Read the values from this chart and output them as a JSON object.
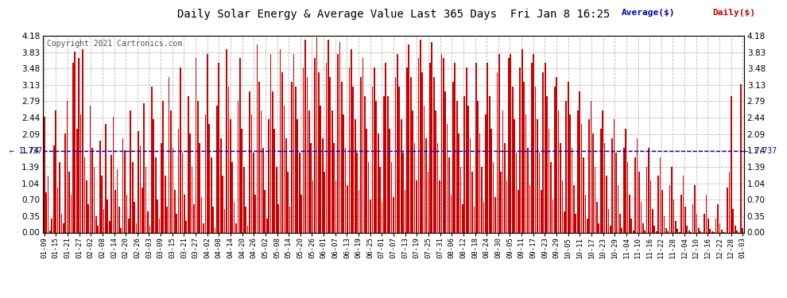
{
  "title": "Daily Solar Energy & Average Value Last 365 Days  Fri Jan 8 16:25",
  "copyright": "Copyright 2021 Cartronics.com",
  "average_label": "Average($)",
  "daily_label": "Daily($)",
  "average_value": 1.737,
  "ylim": [
    0.0,
    4.18
  ],
  "yticks": [
    0.0,
    0.35,
    0.7,
    1.04,
    1.39,
    1.74,
    2.09,
    2.44,
    2.79,
    3.13,
    3.48,
    3.83,
    4.18
  ],
  "bar_color": "#cc0000",
  "avg_line_color": "#0000cc",
  "background_color": "#ffffff",
  "grid_color": "#bbbbbb",
  "title_color": "#000000",
  "avg_text_color": "#0000cc",
  "daily_text_color": "#cc0000",
  "xtick_labels": [
    "01-09",
    "01-15",
    "01-21",
    "01-27",
    "02-02",
    "02-08",
    "02-14",
    "02-20",
    "02-26",
    "03-03",
    "03-09",
    "03-15",
    "03-21",
    "03-27",
    "04-02",
    "04-08",
    "04-14",
    "04-20",
    "04-26",
    "05-02",
    "05-08",
    "05-14",
    "05-20",
    "05-26",
    "06-01",
    "06-07",
    "06-13",
    "06-19",
    "06-25",
    "07-01",
    "07-07",
    "07-13",
    "07-19",
    "07-25",
    "07-31",
    "08-06",
    "08-12",
    "08-18",
    "08-24",
    "08-30",
    "09-05",
    "09-11",
    "09-17",
    "09-23",
    "09-29",
    "10-05",
    "10-11",
    "10-17",
    "10-23",
    "10-29",
    "11-04",
    "11-10",
    "11-16",
    "11-22",
    "11-28",
    "12-04",
    "12-10",
    "12-16",
    "12-22",
    "12-28",
    "01-03"
  ],
  "values": [
    2.45,
    0.85,
    1.2,
    0.05,
    0.3,
    1.85,
    2.6,
    0.95,
    1.5,
    0.4,
    0.2,
    2.1,
    2.8,
    1.3,
    0.8,
    3.6,
    3.85,
    2.2,
    3.7,
    2.5,
    3.9,
    1.6,
    1.1,
    0.6,
    2.7,
    1.8,
    1.4,
    0.35,
    0.15,
    1.95,
    1.2,
    0.5,
    2.3,
    0.7,
    0.25,
    1.65,
    2.45,
    0.9,
    1.35,
    0.55,
    0.1,
    2.0,
    1.75,
    0.8,
    0.3,
    2.6,
    1.5,
    0.65,
    0.2,
    2.15,
    1.85,
    0.95,
    2.75,
    1.4,
    0.45,
    0.15,
    3.1,
    2.4,
    1.6,
    0.7,
    0.3,
    1.9,
    2.8,
    1.2,
    0.55,
    3.3,
    2.6,
    1.8,
    0.9,
    0.4,
    2.2,
    3.5,
    1.7,
    0.8,
    0.25,
    2.9,
    2.1,
    1.4,
    0.6,
    3.7,
    2.8,
    1.9,
    0.75,
    0.2,
    2.5,
    3.8,
    2.3,
    1.6,
    0.55,
    0.1,
    2.7,
    3.6,
    2.0,
    1.2,
    0.5,
    3.9,
    3.1,
    2.4,
    1.5,
    0.65,
    0.2,
    2.8,
    3.7,
    2.2,
    1.4,
    0.55,
    0.15,
    3.0,
    2.5,
    1.7,
    0.8,
    4.0,
    3.2,
    2.6,
    1.8,
    0.9,
    0.3,
    2.4,
    3.8,
    3.0,
    2.2,
    1.4,
    0.6,
    3.9,
    3.4,
    2.7,
    2.0,
    1.3,
    0.55,
    3.2,
    3.8,
    3.1,
    2.4,
    1.7,
    0.8,
    3.5,
    4.1,
    3.3,
    2.6,
    1.9,
    1.1,
    3.7,
    4.15,
    3.4,
    2.7,
    2.0,
    1.3,
    3.6,
    4.1,
    3.3,
    2.6,
    1.9,
    1.1,
    3.8,
    4.05,
    3.2,
    2.5,
    1.8,
    1.0,
    3.5,
    3.9,
    3.1,
    2.4,
    1.7,
    0.9,
    3.3,
    3.7,
    2.9,
    2.2,
    1.5,
    0.7,
    3.1,
    3.5,
    2.8,
    2.1,
    1.4,
    0.65,
    2.9,
    3.6,
    2.9,
    2.2,
    1.5,
    0.75,
    3.3,
    3.8,
    3.1,
    2.4,
    1.7,
    0.9,
    3.5,
    4.0,
    3.3,
    2.6,
    1.9,
    1.1,
    3.7,
    4.1,
    3.4,
    2.7,
    2.0,
    1.3,
    3.6,
    4.05,
    3.3,
    2.6,
    1.9,
    1.1,
    3.8,
    3.7,
    3.0,
    2.3,
    1.6,
    0.8,
    3.2,
    3.6,
    2.8,
    2.1,
    1.4,
    0.6,
    2.9,
    3.5,
    2.7,
    2.0,
    1.3,
    0.55,
    3.6,
    2.8,
    2.1,
    1.4,
    0.65,
    2.5,
    3.6,
    2.9,
    2.2,
    1.5,
    0.75,
    3.4,
    3.8,
    1.3,
    2.6,
    1.9,
    1.1,
    3.7,
    3.8,
    3.1,
    2.4,
    1.7,
    0.9,
    3.5,
    3.9,
    3.2,
    2.5,
    1.8,
    1.0,
    3.6,
    3.8,
    3.1,
    2.4,
    1.7,
    0.9,
    3.4,
    3.6,
    2.9,
    2.2,
    1.5,
    0.7,
    3.1,
    3.3,
    2.6,
    1.9,
    1.1,
    0.45,
    2.8,
    3.2,
    2.5,
    1.8,
    1.0,
    0.4,
    2.6,
    3.0,
    2.3,
    1.6,
    0.8,
    0.3,
    2.4,
    2.8,
    2.1,
    1.4,
    0.65,
    0.2,
    2.2,
    2.6,
    1.9,
    1.2,
    0.5,
    0.15,
    2.0,
    2.4,
    1.7,
    1.0,
    0.4,
    0.1,
    1.8,
    2.2,
    1.5,
    0.8,
    0.3,
    0.05,
    1.6,
    2.0,
    1.3,
    0.65,
    0.2,
    0.05,
    1.4,
    1.8,
    1.1,
    0.5,
    0.15,
    0.03,
    1.2,
    1.6,
    0.9,
    0.35,
    0.1,
    0.02,
    1.0,
    1.4,
    0.7,
    0.25,
    0.08,
    0.01,
    0.8,
    1.2,
    0.55,
    0.15,
    0.05,
    0.01,
    0.6,
    1.0,
    0.4,
    0.1,
    0.03,
    0.01,
    0.4,
    0.8,
    0.3,
    0.08,
    0.02,
    0.01,
    0.3,
    0.6,
    0.2,
    0.06,
    0.01,
    0.01,
    0.95,
    1.3,
    2.9,
    0.5,
    0.15,
    0.04,
    0.01,
    3.15,
    0.1
  ]
}
